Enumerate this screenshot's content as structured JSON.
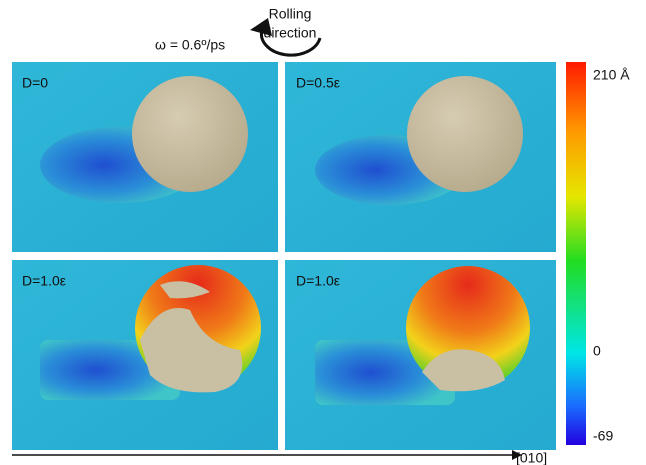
{
  "header": {
    "omega": "ω = 0.6º/ps",
    "rolling": [
      "Rolling",
      "direction"
    ]
  },
  "panels": [
    {
      "label": "D=0"
    },
    {
      "label": "D=0.5ε"
    },
    {
      "label": "D=1.0ε"
    },
    {
      "label": "D=1.0ε"
    }
  ],
  "colorbar": {
    "labels": [
      "210 Å",
      "0",
      "-69"
    ]
  },
  "axis": {
    "label": "[010]"
  }
}
